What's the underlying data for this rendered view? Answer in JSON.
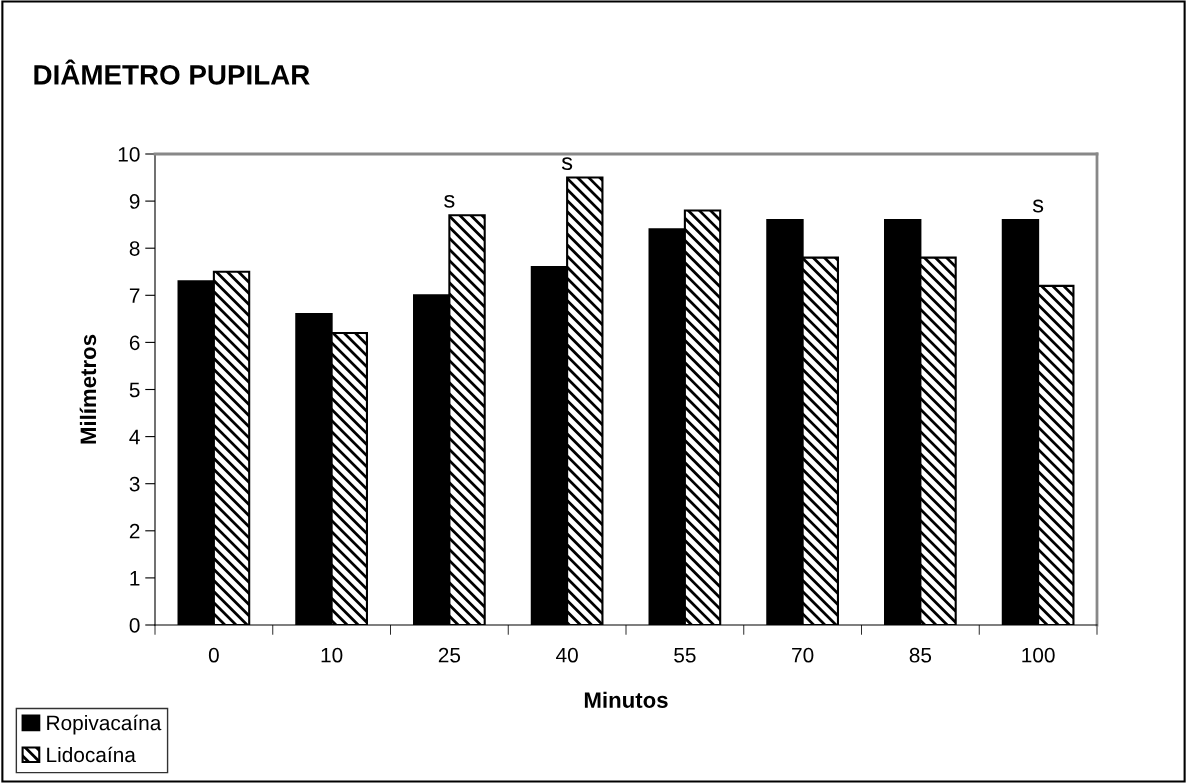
{
  "chart_data": {
    "type": "bar",
    "title": "DIÂMETRO PUPILAR",
    "xlabel": "Minutos",
    "ylabel": "Milímetros",
    "categories": [
      "0",
      "10",
      "25",
      "40",
      "55",
      "70",
      "85",
      "100"
    ],
    "series": [
      {
        "name": "Ropivacaína",
        "color": "#000000",
        "values": [
          7.3,
          6.6,
          7.0,
          7.6,
          8.4,
          8.6,
          8.6,
          8.6
        ]
      },
      {
        "name": "Lidocaína",
        "color": "#000000",
        "values": [
          7.5,
          6.2,
          8.7,
          9.5,
          8.8,
          7.8,
          7.8,
          7.2
        ]
      }
    ],
    "ylim": [
      0,
      10
    ],
    "yticks": [
      0,
      1,
      2,
      3,
      4,
      5,
      6,
      7,
      8,
      9,
      10
    ],
    "grid": false,
    "legend": "bottom left",
    "annotations": [
      {
        "text": "s",
        "x": "25",
        "y": 8.7
      },
      {
        "text": "s",
        "x": "40",
        "y": 9.5
      },
      {
        "text": "s",
        "x": "100",
        "y": 8.6
      }
    ]
  }
}
